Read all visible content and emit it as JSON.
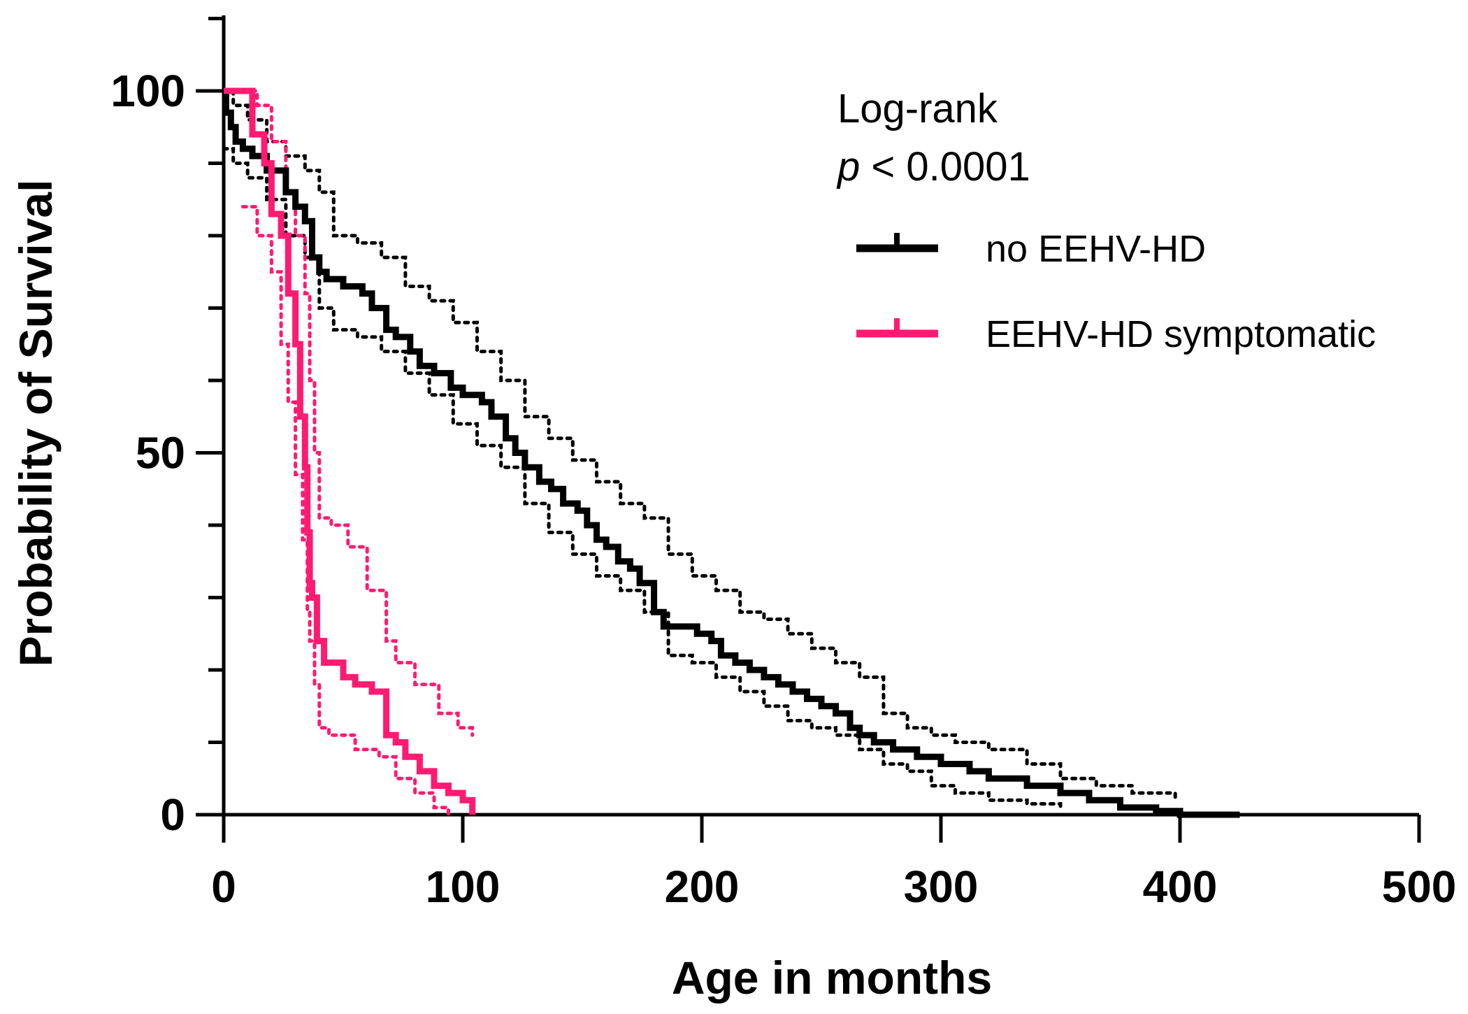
{
  "chart_data": {
    "type": "line",
    "xlabel": "Age in months",
    "ylabel": "Probability of Survival",
    "xlim": [
      0,
      500
    ],
    "ylim": [
      0,
      110
    ],
    "x_ticks": [
      "0",
      "100",
      "200",
      "300",
      "400",
      "500"
    ],
    "y_ticks": [
      "0",
      "50",
      "100"
    ],
    "annotation": {
      "line1": "Log-rank",
      "line2_p": "p",
      "line2_rest": " < 0.0001"
    },
    "legend_position": "top-right",
    "series": [
      {
        "name": "no EEHV-HD",
        "color": "#000000",
        "x": [
          0,
          1,
          3,
          5,
          8,
          12,
          18,
          22,
          26,
          30,
          34,
          37,
          40,
          43,
          50,
          58,
          62,
          68,
          72,
          78,
          82,
          88,
          95,
          100,
          108,
          112,
          118,
          122,
          126,
          132,
          137,
          142,
          148,
          152,
          156,
          160,
          165,
          170,
          174,
          180,
          184,
          190,
          198,
          204,
          208,
          214,
          220,
          226,
          232,
          238,
          244,
          250,
          256,
          262,
          266,
          272,
          280,
          290,
          300,
          312,
          320,
          336,
          350,
          362,
          375,
          390,
          400,
          425
        ],
        "y": [
          100,
          97,
          95,
          93,
          92,
          91,
          89,
          89,
          86,
          84,
          82,
          77,
          75,
          74,
          73,
          72,
          70,
          67,
          66,
          64,
          62,
          61,
          59,
          58,
          57,
          55,
          52,
          50,
          48,
          46,
          45,
          43,
          42,
          40,
          38,
          37,
          35,
          34,
          32,
          28,
          26,
          26,
          25,
          24,
          22,
          21,
          20,
          19,
          18,
          17,
          16,
          15,
          14,
          12,
          11,
          10,
          9,
          8,
          7,
          6,
          5,
          4,
          3,
          2,
          1,
          0.5,
          0,
          0
        ]
      },
      {
        "name": "EEHV-HD symptomatic",
        "color": "#ff1a72",
        "x": [
          0,
          8,
          12,
          17,
          20,
          24,
          27,
          30,
          32,
          34,
          35,
          36,
          37,
          39,
          42,
          44,
          50,
          55,
          62,
          68,
          72,
          76,
          82,
          88,
          94,
          100,
          104
        ],
        "y": [
          100,
          100,
          94,
          90,
          83,
          80,
          72,
          65,
          55,
          48,
          39,
          32,
          30,
          24,
          21,
          21,
          19,
          18,
          17,
          11,
          10,
          8,
          6,
          4,
          3,
          2,
          0
        ]
      }
    ],
    "ci_bands": [
      {
        "series": "no EEHV-HD",
        "color": "#000000",
        "upper": {
          "x": [
            0,
            4,
            10,
            18,
            26,
            34,
            40,
            46,
            56,
            66,
            76,
            86,
            96,
            106,
            116,
            126,
            136,
            146,
            156,
            166,
            176,
            186,
            196,
            206,
            216,
            226,
            236,
            246,
            256,
            266,
            276,
            286,
            296,
            306,
            320,
            336,
            350,
            365,
            380,
            398
          ],
          "y": [
            100,
            98,
            96,
            93,
            91,
            89,
            86,
            80,
            79,
            77,
            73,
            71,
            68,
            64,
            60,
            55,
            52,
            49,
            46,
            43,
            41,
            36,
            33,
            31,
            28,
            27,
            25,
            23,
            21,
            19,
            14,
            12,
            11,
            10,
            9,
            7,
            5,
            4,
            3,
            2
          ]
        },
        "lower": {
          "x": [
            0,
            4,
            10,
            18,
            26,
            34,
            40,
            46,
            56,
            66,
            76,
            86,
            96,
            106,
            116,
            126,
            136,
            146,
            156,
            166,
            176,
            186,
            196,
            206,
            216,
            226,
            236,
            246,
            256,
            266,
            276,
            286,
            296,
            306,
            320,
            336,
            350
          ],
          "y": [
            92,
            90,
            88,
            85,
            80,
            77,
            70,
            67,
            66,
            64,
            61,
            58,
            54,
            51,
            48,
            43,
            39,
            36,
            33,
            31,
            28,
            22,
            21,
            19,
            17,
            15,
            13,
            12,
            11,
            9,
            7,
            6,
            4,
            3,
            2,
            1.5,
            1
          ]
        }
      },
      {
        "series": "EEHV-HD symptomatic",
        "color": "#ff1a72",
        "upper": {
          "x": [
            8,
            14,
            20,
            26,
            30,
            34,
            36,
            38,
            40,
            45,
            52,
            60,
            68,
            72,
            80,
            90,
            98,
            104
          ],
          "y": [
            100,
            98,
            93,
            86,
            80,
            72,
            60,
            50,
            41,
            40,
            37,
            31,
            24,
            21,
            18,
            14,
            12,
            11
          ]
        },
        "lower": {
          "x": [
            8,
            14,
            20,
            24,
            27,
            30,
            33,
            35,
            36,
            38,
            40,
            44,
            55,
            65,
            72,
            80,
            88,
            94
          ],
          "y": [
            84,
            80,
            75,
            65,
            57,
            47,
            38,
            28,
            24,
            18,
            12,
            11,
            9,
            8,
            5,
            3,
            1,
            0
          ]
        }
      }
    ]
  }
}
